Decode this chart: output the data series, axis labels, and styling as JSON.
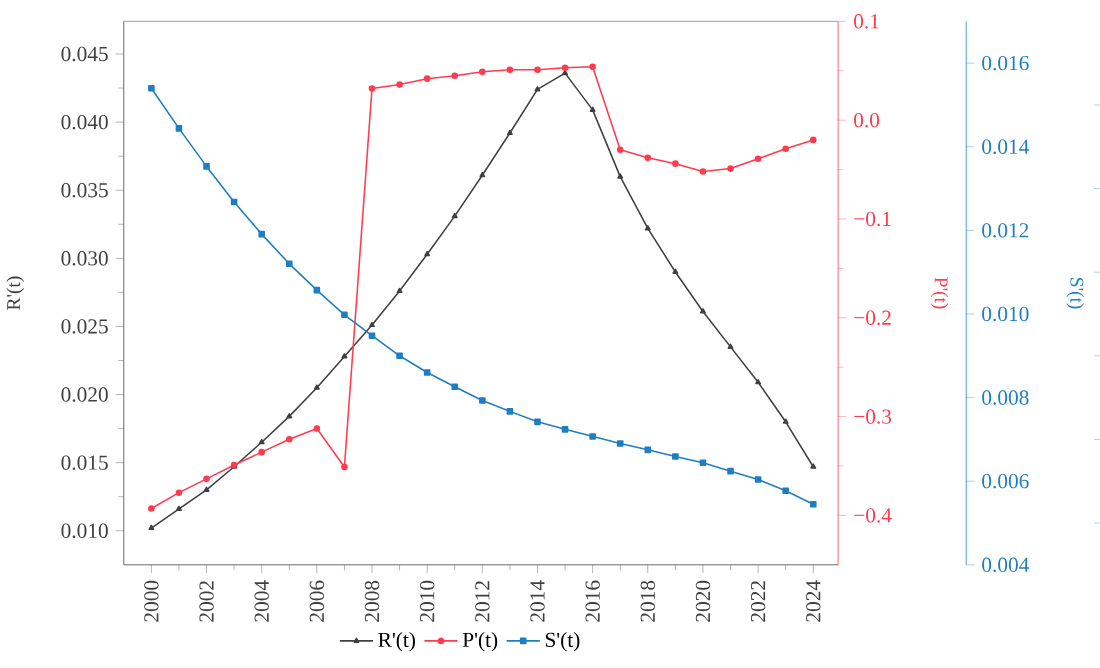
{
  "chart_data": {
    "type": "line",
    "ylabel": "R'(t)",
    "y2label": "P'(t)",
    "y3label": "S'(t)",
    "x": [
      2000,
      2001,
      2002,
      2003,
      2004,
      2005,
      2006,
      2007,
      2008,
      2009,
      2010,
      2011,
      2012,
      2013,
      2014,
      2015,
      2016,
      2017,
      2018,
      2019,
      2020,
      2021,
      2022,
      2023,
      2024
    ],
    "xlim": [
      1999,
      2024.9
    ],
    "xticks": [
      {
        "value": 2000,
        "label": "2000"
      },
      {
        "value": 2002,
        "label": "2002"
      },
      {
        "value": 2004,
        "label": "2004"
      },
      {
        "value": 2006,
        "label": "2006"
      },
      {
        "value": 2008,
        "label": "2008"
      },
      {
        "value": 2010,
        "label": "2010"
      },
      {
        "value": 2012,
        "label": "2012"
      },
      {
        "value": 2014,
        "label": "2014"
      },
      {
        "value": 2016,
        "label": "2016"
      },
      {
        "value": 2018,
        "label": "2018"
      },
      {
        "value": 2020,
        "label": "2020"
      },
      {
        "value": 2022,
        "label": "2022"
      },
      {
        "value": 2024,
        "label": "2024"
      }
    ],
    "ylim": [
      0.0075,
      0.0474
    ],
    "yticks": [
      {
        "value": 0.01,
        "label": "0.010"
      },
      {
        "value": 0.015,
        "label": "0.015"
      },
      {
        "value": 0.02,
        "label": "0.020"
      },
      {
        "value": 0.025,
        "label": "0.025"
      },
      {
        "value": 0.03,
        "label": "0.030"
      },
      {
        "value": 0.035,
        "label": "0.035"
      },
      {
        "value": 0.04,
        "label": "0.040"
      },
      {
        "value": 0.045,
        "label": "0.045"
      }
    ],
    "y2lim": [
      -0.45,
      0.1
    ],
    "y2ticks": [
      {
        "value": -0.4,
        "label": "−0.4"
      },
      {
        "value": -0.3,
        "label": "−0.3"
      },
      {
        "value": -0.2,
        "label": "−0.2"
      },
      {
        "value": -0.1,
        "label": "−0.1"
      },
      {
        "value": 0.0,
        "label": "0.0"
      },
      {
        "value": 0.1,
        "label": "0.1"
      }
    ],
    "y3lim": [
      0.004,
      0.017
    ],
    "y3ticks": [
      0.004,
      0.006,
      0.008,
      {
        "value": 0.01,
        "label": "0.010"
      },
      0.012,
      0.014,
      0.016
    ],
    "legend": "bottom",
    "grid": false,
    "series": [
      {
        "name": "R'(t)",
        "color": "#404040",
        "marker": "triangle",
        "axis": "y",
        "values": [
          0.0102,
          0.0116,
          0.013,
          0.0147,
          0.0165,
          0.0184,
          0.0205,
          0.0228,
          0.0251,
          0.0276,
          0.0303,
          0.0331,
          0.0361,
          0.0392,
          0.0424,
          0.0436,
          0.0409,
          0.036,
          0.0322,
          0.029,
          0.0261,
          0.0235,
          0.0209,
          0.018,
          0.0147
        ]
      },
      {
        "name": "P'(t)",
        "color": "#ff3b4e",
        "marker": "circle",
        "axis": "y2",
        "values": [
          -0.393,
          -0.377,
          -0.363,
          -0.349,
          -0.336,
          -0.323,
          -0.312,
          -0.351,
          0.032,
          0.036,
          0.042,
          0.045,
          0.049,
          0.051,
          0.051,
          0.053,
          0.054,
          -0.03,
          -0.038,
          -0.044,
          -0.052,
          -0.049,
          -0.039,
          -0.029,
          -0.02
        ]
      },
      {
        "name": "S'(t)",
        "color": "#1f7ec0",
        "marker": "square",
        "axis": "y3",
        "values": [
          0.0154,
          0.01444,
          0.01353,
          0.01268,
          0.01191,
          0.0112,
          0.01057,
          0.00998,
          0.00948,
          0.009,
          0.0086,
          0.00826,
          0.00793,
          0.00767,
          0.00742,
          0.00724,
          0.00707,
          0.0069,
          0.00675,
          0.00659,
          0.00644,
          0.00624,
          0.00604,
          0.00577,
          0.00545
        ]
      }
    ]
  }
}
